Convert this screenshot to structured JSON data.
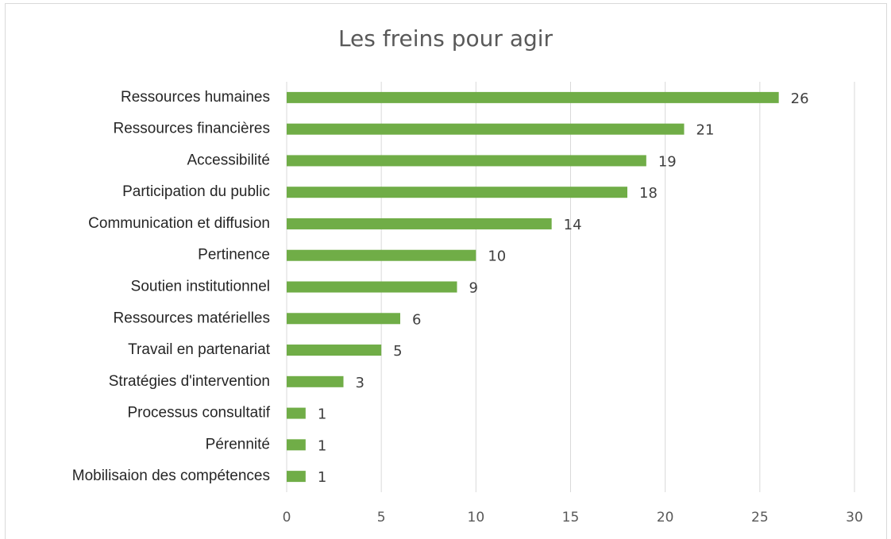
{
  "chart_data": {
    "type": "bar",
    "orientation": "horizontal",
    "title": "Les freins pour agir",
    "categories": [
      "Ressources humaines",
      "Ressources financières",
      "Accessibilité",
      "Participation du public",
      "Communication et diffusion",
      "Pertinence",
      "Soutien institutionnel",
      "Ressources matérielles",
      "Travail en partenariat",
      "Stratégies d'intervention",
      "Processus consultatif",
      "Pérennité",
      "Mobilisaion des compétences"
    ],
    "values": [
      26,
      21,
      19,
      18,
      14,
      10,
      9,
      6,
      5,
      3,
      1,
      1,
      1
    ],
    "color": "#70ad47",
    "xlim": [
      0,
      30
    ],
    "xticks": [
      0,
      5,
      10,
      15,
      20,
      25,
      30
    ],
    "grid": true
  }
}
